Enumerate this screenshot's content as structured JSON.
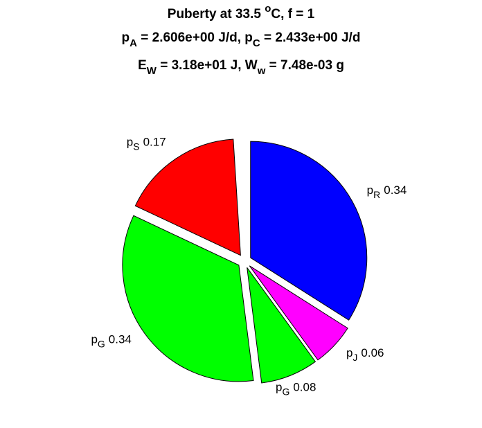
{
  "chart_data": {
    "type": "pie",
    "title": [
      [
        {
          "text": "Puberty at 33.5 "
        },
        {
          "text": "o",
          "script": "sup"
        },
        {
          "text": "C, f = 1"
        }
      ],
      [
        {
          "text": "p"
        },
        {
          "text": "A",
          "script": "sub"
        },
        {
          "text": " = 2.606e+00 J/d,  p"
        },
        {
          "text": "C",
          "script": "sub"
        },
        {
          "text": " = 2.433e+00 J/d"
        }
      ],
      [
        {
          "text": "E"
        },
        {
          "text": "W",
          "script": "sub"
        },
        {
          "text": " = 3.18e+01 J, W"
        },
        {
          "text": "w",
          "script": "sub"
        },
        {
          "text": " = 7.48e-03 g"
        }
      ]
    ],
    "categories": [
      {
        "text": "p",
        "sub": "R"
      },
      {
        "text": "p",
        "sub": "J"
      },
      {
        "text": "p",
        "sub": "G"
      },
      {
        "text": "p",
        "sub": "G"
      },
      {
        "text": "p",
        "sub": "S"
      }
    ],
    "values": [
      0.34,
      0.06,
      0.08,
      0.34,
      0.17
    ],
    "colors": [
      "#0000ff",
      "#ff00ff",
      "#00ff00",
      "#00ff00",
      "#ff0000"
    ],
    "explode": true
  }
}
